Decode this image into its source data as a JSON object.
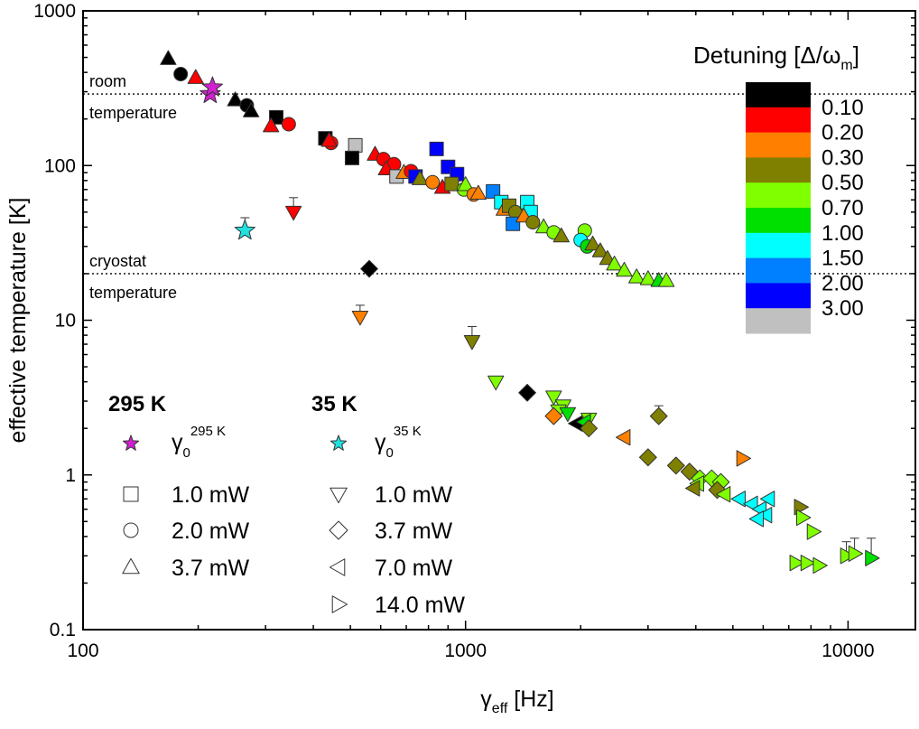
{
  "chart_data": {
    "type": "scatter",
    "xscale": "log",
    "yscale": "log",
    "xlim": [
      100,
      15000
    ],
    "ylim": [
      0.1,
      1000
    ],
    "xlabel": {
      "main": "γ",
      "sub": "eff",
      "rest": " [Hz]"
    },
    "ylabel": "effective temperature [K]",
    "xticks": [
      {
        "v": 100,
        "label": "100"
      },
      {
        "v": 1000,
        "label": "1000"
      },
      {
        "v": 10000,
        "label": "10000"
      }
    ],
    "yticks": [
      {
        "v": 0.1,
        "label": "0.1"
      },
      {
        "v": 1,
        "label": "1"
      },
      {
        "v": 10,
        "label": "10"
      },
      {
        "v": 100,
        "label": "100"
      },
      {
        "v": 1000,
        "label": "1000"
      }
    ],
    "reference_lines": [
      {
        "y": 290,
        "label_above": "room",
        "label_below": "temperature"
      },
      {
        "y": 20,
        "label_above": "cryostat",
        "label_below": "temperature"
      }
    ],
    "colorbar": {
      "title": "Detuning [Δ/ω",
      "title_sub": "m",
      "title_end": "]",
      "colors": [
        "#000000",
        "#ff0000",
        "#ff8000",
        "#808000",
        "#80ff00",
        "#00e000",
        "#00ffff",
        "#0080ff",
        "#0000ff",
        "#c0c0c0"
      ],
      "labels": [
        "0.10",
        "0.20",
        "0.30",
        "0.50",
        "0.70",
        "1.00",
        "1.50",
        "2.00",
        "3.00"
      ]
    },
    "legend": {
      "groups": [
        {
          "title": "295 K",
          "items": [
            {
              "marker": "star",
              "color": "#d020d0",
              "symbol": "γ",
              "sub": "0",
              "sup": "295 K"
            },
            {
              "marker": "square",
              "label": "1.0 mW"
            },
            {
              "marker": "circle",
              "label": "2.0 mW"
            },
            {
              "marker": "triangle-up",
              "label": "3.7 mW"
            }
          ]
        },
        {
          "title": "35 K",
          "items": [
            {
              "marker": "star",
              "color": "#20e0e0",
              "symbol": "γ",
              "sub": "0",
              "sup": "35 K"
            },
            {
              "marker": "triangle-down",
              "label": "1.0 mW"
            },
            {
              "marker": "diamond",
              "label": "3.7 mW"
            },
            {
              "marker": "triangle-left",
              "label": "7.0 mW"
            },
            {
              "marker": "triangle-right",
              "label": "14.0 mW"
            }
          ]
        }
      ]
    },
    "points": [
      {
        "x": 167,
        "y": 490,
        "m": "triangle-up",
        "c": "#000000"
      },
      {
        "x": 180,
        "y": 390,
        "m": "circle",
        "c": "#000000"
      },
      {
        "x": 197,
        "y": 370,
        "m": "triangle-up",
        "c": "#ff0000"
      },
      {
        "x": 250,
        "y": 265,
        "m": "triangle-up",
        "c": "#000000"
      },
      {
        "x": 268,
        "y": 245,
        "m": "circle",
        "c": "#000000"
      },
      {
        "x": 275,
        "y": 225,
        "m": "triangle-up",
        "c": "#000000"
      },
      {
        "x": 320,
        "y": 205,
        "m": "square",
        "c": "#000000"
      },
      {
        "x": 345,
        "y": 185,
        "m": "circle",
        "c": "#ff0000"
      },
      {
        "x": 310,
        "y": 180,
        "m": "triangle-up",
        "c": "#ff0000"
      },
      {
        "x": 430,
        "y": 150,
        "m": "square",
        "c": "#000000"
      },
      {
        "x": 445,
        "y": 140,
        "m": "circle",
        "c": "#ff0000"
      },
      {
        "x": 440,
        "y": 145,
        "m": "triangle-up",
        "c": "#ff0000"
      },
      {
        "x": 515,
        "y": 135,
        "m": "square",
        "c": "#c0c0c0"
      },
      {
        "x": 505,
        "y": 112,
        "m": "square",
        "c": "#000000"
      },
      {
        "x": 580,
        "y": 118,
        "m": "triangle-up",
        "c": "#ff0000"
      },
      {
        "x": 610,
        "y": 110,
        "m": "circle",
        "c": "#ff0000"
      },
      {
        "x": 650,
        "y": 102,
        "m": "circle",
        "c": "#ff0000"
      },
      {
        "x": 620,
        "y": 95,
        "m": "triangle-up",
        "c": "#ff0000"
      },
      {
        "x": 660,
        "y": 85,
        "m": "square",
        "c": "#c0c0c0"
      },
      {
        "x": 690,
        "y": 90,
        "m": "triangle-up",
        "c": "#ff8000"
      },
      {
        "x": 720,
        "y": 92,
        "m": "circle",
        "c": "#ff0000"
      },
      {
        "x": 740,
        "y": 85,
        "m": "square",
        "c": "#0000ff"
      },
      {
        "x": 760,
        "y": 82,
        "m": "triangle-up",
        "c": "#808000"
      },
      {
        "x": 840,
        "y": 128,
        "m": "square",
        "c": "#0000ff"
      },
      {
        "x": 900,
        "y": 98,
        "m": "square",
        "c": "#0000ff"
      },
      {
        "x": 950,
        "y": 88,
        "m": "square",
        "c": "#0000ff"
      },
      {
        "x": 820,
        "y": 78,
        "m": "circle",
        "c": "#ff8000"
      },
      {
        "x": 870,
        "y": 72,
        "m": "triangle-up",
        "c": "#ff0000"
      },
      {
        "x": 920,
        "y": 76,
        "m": "square",
        "c": "#808000"
      },
      {
        "x": 990,
        "y": 70,
        "m": "circle",
        "c": "#80ff00"
      },
      {
        "x": 1000,
        "y": 75,
        "m": "triangle-up",
        "c": "#80ff00"
      },
      {
        "x": 1050,
        "y": 65,
        "m": "circle",
        "c": "#ff8000"
      },
      {
        "x": 1080,
        "y": 66,
        "m": "triangle-up",
        "c": "#ff8000"
      },
      {
        "x": 1180,
        "y": 68,
        "m": "square",
        "c": "#0080ff"
      },
      {
        "x": 1240,
        "y": 58,
        "m": "square",
        "c": "#00ffff"
      },
      {
        "x": 1260,
        "y": 52,
        "m": "triangle-up",
        "c": "#ff8000"
      },
      {
        "x": 1300,
        "y": 55,
        "m": "square",
        "c": "#808000"
      },
      {
        "x": 1350,
        "y": 50,
        "m": "circle",
        "c": "#808000"
      },
      {
        "x": 1330,
        "y": 42,
        "m": "square",
        "c": "#0080ff"
      },
      {
        "x": 1450,
        "y": 58,
        "m": "square",
        "c": "#00ffff"
      },
      {
        "x": 1480,
        "y": 50,
        "m": "square",
        "c": "#00ffff"
      },
      {
        "x": 1420,
        "y": 47,
        "m": "triangle-up",
        "c": "#ff8000"
      },
      {
        "x": 1500,
        "y": 43,
        "m": "circle",
        "c": "#808000"
      },
      {
        "x": 1600,
        "y": 40,
        "m": "triangle-up",
        "c": "#80ff00"
      },
      {
        "x": 1700,
        "y": 37,
        "m": "circle",
        "c": "#80ff00"
      },
      {
        "x": 1780,
        "y": 35,
        "m": "triangle-up",
        "c": "#808000"
      },
      {
        "x": 2050,
        "y": 38,
        "m": "circle",
        "c": "#80ff00"
      },
      {
        "x": 2000,
        "y": 33,
        "m": "circle",
        "c": "#00ffff"
      },
      {
        "x": 2080,
        "y": 30,
        "m": "circle",
        "c": "#00e000"
      },
      {
        "x": 2150,
        "y": 31,
        "m": "triangle-up",
        "c": "#808000"
      },
      {
        "x": 2250,
        "y": 28,
        "m": "triangle-up",
        "c": "#808000"
      },
      {
        "x": 2350,
        "y": 25,
        "m": "triangle-up",
        "c": "#808000"
      },
      {
        "x": 2450,
        "y": 23,
        "m": "triangle-up",
        "c": "#80ff00"
      },
      {
        "x": 2600,
        "y": 21,
        "m": "triangle-up",
        "c": "#80ff00"
      },
      {
        "x": 2800,
        "y": 19,
        "m": "triangle-up",
        "c": "#80ff00"
      },
      {
        "x": 3000,
        "y": 18.5,
        "m": "triangle-up",
        "c": "#80ff00"
      },
      {
        "x": 3200,
        "y": 18,
        "m": "triangle-up",
        "c": "#00e000"
      },
      {
        "x": 3350,
        "y": 18,
        "m": "triangle-up",
        "c": "#80ff00"
      },
      {
        "x": 215,
        "y": 290,
        "m": "star",
        "c": "#d020d0"
      },
      {
        "x": 218,
        "y": 320,
        "m": "star",
        "c": "#d020d0"
      },
      {
        "x": 265,
        "y": 38,
        "m": "star",
        "c": "#20e0e0",
        "err": 8
      },
      {
        "x": 355,
        "y": 50,
        "m": "triangle-down",
        "c": "#ff0000",
        "err": 12
      },
      {
        "x": 560,
        "y": 21.5,
        "m": "diamond",
        "c": "#000000"
      },
      {
        "x": 530,
        "y": 10.5,
        "m": "triangle-down",
        "c": "#ff8000",
        "err": 2
      },
      {
        "x": 1040,
        "y": 7.3,
        "m": "triangle-down",
        "c": "#808000",
        "err": 1.8
      },
      {
        "x": 1200,
        "y": 4.0,
        "m": "triangle-down",
        "c": "#80ff00"
      },
      {
        "x": 1450,
        "y": 3.4,
        "m": "diamond",
        "c": "#000000"
      },
      {
        "x": 1700,
        "y": 3.2,
        "m": "triangle-down",
        "c": "#80ff00"
      },
      {
        "x": 1800,
        "y": 2.8,
        "m": "triangle-down",
        "c": "#80ff00"
      },
      {
        "x": 1750,
        "y": 2.6,
        "m": "triangle-down",
        "c": "#80ff00"
      },
      {
        "x": 1850,
        "y": 2.5,
        "m": "triangle-down",
        "c": "#00e000"
      },
      {
        "x": 2100,
        "y": 2.3,
        "m": "triangle-down",
        "c": "#80ff00"
      },
      {
        "x": 1700,
        "y": 2.4,
        "m": "diamond",
        "c": "#ff8000"
      },
      {
        "x": 1950,
        "y": 2.15,
        "m": "triangle-left",
        "c": "#000000"
      },
      {
        "x": 2050,
        "y": 2.2,
        "m": "triangle-left",
        "c": "#00e000"
      },
      {
        "x": 2100,
        "y": 2.0,
        "m": "diamond",
        "c": "#808000"
      },
      {
        "x": 2600,
        "y": 1.75,
        "m": "triangle-left",
        "c": "#ff8000"
      },
      {
        "x": 3200,
        "y": 2.4,
        "m": "diamond",
        "c": "#808000",
        "err": 0.4
      },
      {
        "x": 3000,
        "y": 1.3,
        "m": "diamond",
        "c": "#808000"
      },
      {
        "x": 3550,
        "y": 1.15,
        "m": "diamond",
        "c": "#808000"
      },
      {
        "x": 3850,
        "y": 1.05,
        "m": "diamond",
        "c": "#808000"
      },
      {
        "x": 4100,
        "y": 0.95,
        "m": "diamond",
        "c": "#80ff00"
      },
      {
        "x": 4400,
        "y": 0.95,
        "m": "diamond",
        "c": "#80ff00"
      },
      {
        "x": 4050,
        "y": 0.88,
        "m": "triangle-left",
        "c": "#80ff00"
      },
      {
        "x": 4650,
        "y": 0.9,
        "m": "diamond",
        "c": "#80ff00"
      },
      {
        "x": 3950,
        "y": 0.82,
        "m": "triangle-left",
        "c": "#808000"
      },
      {
        "x": 4550,
        "y": 0.8,
        "m": "diamond",
        "c": "#808000"
      },
      {
        "x": 4750,
        "y": 0.75,
        "m": "triangle-left",
        "c": "#80ff00"
      },
      {
        "x": 5300,
        "y": 1.28,
        "m": "triangle-right",
        "c": "#ff8000"
      },
      {
        "x": 5200,
        "y": 0.7,
        "m": "triangle-left",
        "c": "#00ffff"
      },
      {
        "x": 5600,
        "y": 0.65,
        "m": "triangle-left",
        "c": "#00ffff"
      },
      {
        "x": 5900,
        "y": 0.6,
        "m": "triangle-left",
        "c": "#00ffff"
      },
      {
        "x": 6100,
        "y": 0.55,
        "m": "triangle-left",
        "c": "#00ffff"
      },
      {
        "x": 5800,
        "y": 0.52,
        "m": "triangle-left",
        "c": "#00ffff"
      },
      {
        "x": 6200,
        "y": 0.7,
        "m": "triangle-left",
        "c": "#00ffff"
      },
      {
        "x": 7500,
        "y": 0.62,
        "m": "triangle-right",
        "c": "#808000"
      },
      {
        "x": 7600,
        "y": 0.53,
        "m": "triangle-right",
        "c": "#80ff00"
      },
      {
        "x": 8100,
        "y": 0.43,
        "m": "triangle-right",
        "c": "#80ff00"
      },
      {
        "x": 7300,
        "y": 0.27,
        "m": "triangle-right",
        "c": "#80ff00"
      },
      {
        "x": 7800,
        "y": 0.27,
        "m": "triangle-right",
        "c": "#80ff00"
      },
      {
        "x": 8400,
        "y": 0.26,
        "m": "triangle-right",
        "c": "#80ff00"
      },
      {
        "x": 9900,
        "y": 0.3,
        "m": "triangle-right",
        "c": "#80ff00",
        "err": 0.07
      },
      {
        "x": 10400,
        "y": 0.31,
        "m": "triangle-right",
        "c": "#80ff00",
        "err": 0.08
      },
      {
        "x": 11500,
        "y": 0.29,
        "m": "triangle-right",
        "c": "#00e000",
        "err": 0.1
      }
    ]
  }
}
